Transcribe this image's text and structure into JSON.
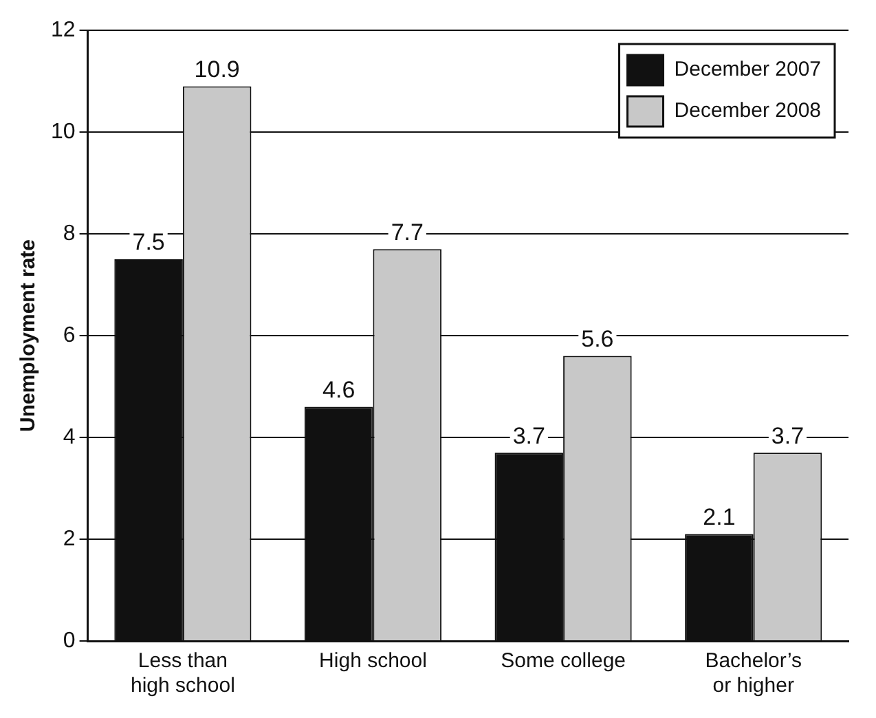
{
  "chart_data": {
    "type": "bar",
    "ylabel": "Unemployment rate",
    "categories": [
      "Less than high school",
      "High school",
      "Some college",
      "Bachelor’s or higher"
    ],
    "series": [
      {
        "name": "December 2007",
        "color": "#111111",
        "values": [
          7.5,
          4.6,
          3.7,
          2.1
        ]
      },
      {
        "name": "December 2008",
        "color": "#c8c8c8",
        "values": [
          10.9,
          7.7,
          5.6,
          3.7
        ]
      }
    ],
    "ylim": [
      0,
      12
    ],
    "yticks": [
      0,
      2,
      4,
      6,
      8,
      10,
      12
    ],
    "grid": "y",
    "legend": "top right",
    "data_labels": true
  }
}
